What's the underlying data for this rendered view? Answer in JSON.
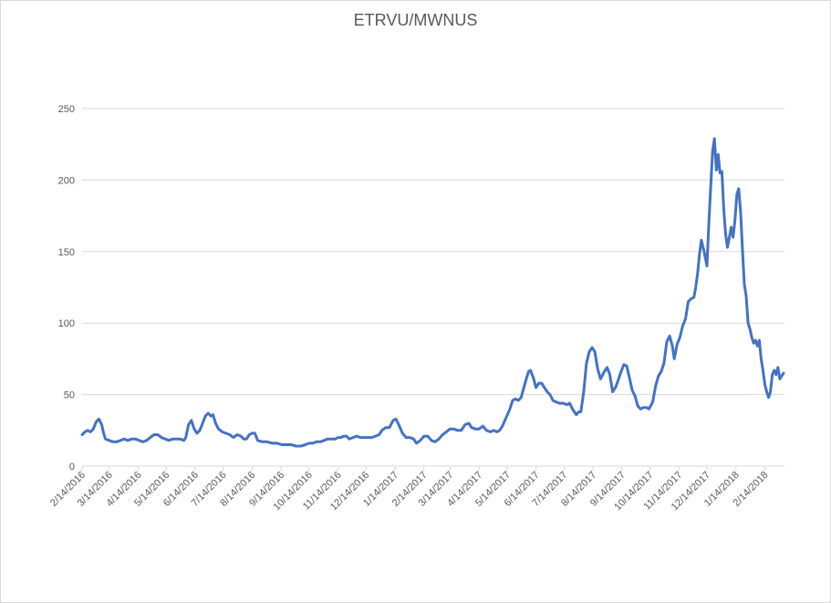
{
  "chart_data": {
    "type": "line",
    "title": "ETRVU/MWNUS",
    "xlabel": "",
    "ylabel": "",
    "ylim": [
      0,
      250
    ],
    "y_ticks": [
      0,
      50,
      100,
      150,
      200,
      250
    ],
    "x_range": [
      "2016-02-14",
      "2018-03-07"
    ],
    "x_tick_labels": [
      "2/14/2016",
      "3/14/2016",
      "4/14/2016",
      "5/14/2016",
      "6/14/2016",
      "7/14/2016",
      "8/14/2016",
      "9/14/2016",
      "10/14/2016",
      "11/14/2016",
      "12/14/2016",
      "1/14/2017",
      "2/14/2017",
      "3/14/2017",
      "4/14/2017",
      "5/14/2017",
      "6/14/2017",
      "7/14/2017",
      "8/14/2017",
      "9/14/2017",
      "10/14/2017",
      "11/14/2017",
      "12/14/2017",
      "1/14/2018",
      "2/14/2018"
    ],
    "grid": true,
    "legend": "none",
    "line_color": "#4472c4",
    "grid_color": "#d9d9d9",
    "series": [
      {
        "points": [
          [
            "2016-02-14",
            22
          ],
          [
            "2016-02-17",
            24
          ],
          [
            "2016-02-20",
            25
          ],
          [
            "2016-02-23",
            24
          ],
          [
            "2016-02-26",
            26
          ],
          [
            "2016-02-29",
            31
          ],
          [
            "2016-03-03",
            33
          ],
          [
            "2016-03-06",
            29
          ],
          [
            "2016-03-08",
            23
          ],
          [
            "2016-03-10",
            19
          ],
          [
            "2016-03-14",
            18
          ],
          [
            "2016-03-18",
            17
          ],
          [
            "2016-03-22",
            17
          ],
          [
            "2016-03-26",
            18
          ],
          [
            "2016-03-30",
            19
          ],
          [
            "2016-04-03",
            18
          ],
          [
            "2016-04-07",
            19
          ],
          [
            "2016-04-11",
            19
          ],
          [
            "2016-04-15",
            18
          ],
          [
            "2016-04-19",
            17
          ],
          [
            "2016-04-23",
            18
          ],
          [
            "2016-04-27",
            20
          ],
          [
            "2016-05-01",
            22
          ],
          [
            "2016-05-05",
            22
          ],
          [
            "2016-05-09",
            20
          ],
          [
            "2016-05-13",
            19
          ],
          [
            "2016-05-17",
            18
          ],
          [
            "2016-05-21",
            19
          ],
          [
            "2016-05-25",
            19
          ],
          [
            "2016-05-29",
            19
          ],
          [
            "2016-06-02",
            18
          ],
          [
            "2016-06-04",
            20
          ],
          [
            "2016-06-07",
            29
          ],
          [
            "2016-06-10",
            32
          ],
          [
            "2016-06-13",
            26
          ],
          [
            "2016-06-16",
            23
          ],
          [
            "2016-06-19",
            25
          ],
          [
            "2016-06-22",
            30
          ],
          [
            "2016-06-25",
            35
          ],
          [
            "2016-06-28",
            37
          ],
          [
            "2016-07-01",
            35
          ],
          [
            "2016-07-03",
            36
          ],
          [
            "2016-07-06",
            30
          ],
          [
            "2016-07-09",
            26
          ],
          [
            "2016-07-13",
            24
          ],
          [
            "2016-07-17",
            23
          ],
          [
            "2016-07-21",
            22
          ],
          [
            "2016-07-25",
            20
          ],
          [
            "2016-07-29",
            22
          ],
          [
            "2016-08-02",
            21
          ],
          [
            "2016-08-05",
            19
          ],
          [
            "2016-08-08",
            19
          ],
          [
            "2016-08-11",
            22
          ],
          [
            "2016-08-14",
            23
          ],
          [
            "2016-08-17",
            23
          ],
          [
            "2016-08-20",
            18
          ],
          [
            "2016-08-25",
            17
          ],
          [
            "2016-08-30",
            17
          ],
          [
            "2016-09-05",
            16
          ],
          [
            "2016-09-10",
            16
          ],
          [
            "2016-09-15",
            15
          ],
          [
            "2016-09-20",
            15
          ],
          [
            "2016-09-25",
            15
          ],
          [
            "2016-09-30",
            14
          ],
          [
            "2016-10-05",
            14
          ],
          [
            "2016-10-10",
            15
          ],
          [
            "2016-10-14",
            16
          ],
          [
            "2016-10-18",
            16
          ],
          [
            "2016-10-22",
            17
          ],
          [
            "2016-10-26",
            17
          ],
          [
            "2016-10-30",
            18
          ],
          [
            "2016-11-03",
            19
          ],
          [
            "2016-11-07",
            19
          ],
          [
            "2016-11-11",
            19
          ],
          [
            "2016-11-14",
            20
          ],
          [
            "2016-11-17",
            20
          ],
          [
            "2016-11-20",
            21
          ],
          [
            "2016-11-23",
            21
          ],
          [
            "2016-11-26",
            19
          ],
          [
            "2016-11-30",
            20
          ],
          [
            "2016-12-04",
            21
          ],
          [
            "2016-12-08",
            20
          ],
          [
            "2016-12-12",
            20
          ],
          [
            "2016-12-16",
            20
          ],
          [
            "2016-12-20",
            20
          ],
          [
            "2016-12-24",
            21
          ],
          [
            "2016-12-28",
            22
          ],
          [
            "2016-12-31",
            25
          ],
          [
            "2017-01-04",
            27
          ],
          [
            "2017-01-08",
            27
          ],
          [
            "2017-01-12",
            32
          ],
          [
            "2017-01-15",
            33
          ],
          [
            "2017-01-18",
            29
          ],
          [
            "2017-01-22",
            23
          ],
          [
            "2017-01-26",
            20
          ],
          [
            "2017-01-30",
            20
          ],
          [
            "2017-02-03",
            19
          ],
          [
            "2017-02-06",
            16
          ],
          [
            "2017-02-10",
            18
          ],
          [
            "2017-02-14",
            21
          ],
          [
            "2017-02-18",
            21
          ],
          [
            "2017-02-22",
            18
          ],
          [
            "2017-02-26",
            17
          ],
          [
            "2017-03-02",
            19
          ],
          [
            "2017-03-06",
            22
          ],
          [
            "2017-03-10",
            24
          ],
          [
            "2017-03-14",
            26
          ],
          [
            "2017-03-18",
            26
          ],
          [
            "2017-03-22",
            25
          ],
          [
            "2017-03-26",
            25
          ],
          [
            "2017-03-30",
            29
          ],
          [
            "2017-04-03",
            30
          ],
          [
            "2017-04-06",
            27
          ],
          [
            "2017-04-10",
            26
          ],
          [
            "2017-04-14",
            26
          ],
          [
            "2017-04-18",
            28
          ],
          [
            "2017-04-22",
            25
          ],
          [
            "2017-04-26",
            24
          ],
          [
            "2017-04-30",
            25
          ],
          [
            "2017-05-03",
            24
          ],
          [
            "2017-05-06",
            25
          ],
          [
            "2017-05-09",
            28
          ],
          [
            "2017-05-13",
            34
          ],
          [
            "2017-05-17",
            40
          ],
          [
            "2017-05-20",
            46
          ],
          [
            "2017-05-23",
            47
          ],
          [
            "2017-05-26",
            46
          ],
          [
            "2017-05-29",
            48
          ],
          [
            "2017-06-01",
            55
          ],
          [
            "2017-06-04",
            62
          ],
          [
            "2017-06-06",
            66
          ],
          [
            "2017-06-08",
            67
          ],
          [
            "2017-06-11",
            62
          ],
          [
            "2017-06-14",
            55
          ],
          [
            "2017-06-17",
            58
          ],
          [
            "2017-06-20",
            58
          ],
          [
            "2017-06-23",
            55
          ],
          [
            "2017-06-26",
            52
          ],
          [
            "2017-06-29",
            50
          ],
          [
            "2017-07-02",
            46
          ],
          [
            "2017-07-05",
            45
          ],
          [
            "2017-07-09",
            44
          ],
          [
            "2017-07-13",
            44
          ],
          [
            "2017-07-17",
            43
          ],
          [
            "2017-07-20",
            44
          ],
          [
            "2017-07-23",
            40
          ],
          [
            "2017-07-27",
            36
          ],
          [
            "2017-07-30",
            38
          ],
          [
            "2017-08-01",
            38
          ],
          [
            "2017-08-04",
            52
          ],
          [
            "2017-08-07",
            72
          ],
          [
            "2017-08-10",
            80
          ],
          [
            "2017-08-13",
            83
          ],
          [
            "2017-08-16",
            80
          ],
          [
            "2017-08-19",
            68
          ],
          [
            "2017-08-22",
            61
          ],
          [
            "2017-08-26",
            66
          ],
          [
            "2017-08-29",
            69
          ],
          [
            "2017-09-01",
            64
          ],
          [
            "2017-09-04",
            52
          ],
          [
            "2017-09-07",
            55
          ],
          [
            "2017-09-10",
            60
          ],
          [
            "2017-09-13",
            66
          ],
          [
            "2017-09-16",
            71
          ],
          [
            "2017-09-19",
            70
          ],
          [
            "2017-09-22",
            62
          ],
          [
            "2017-09-25",
            53
          ],
          [
            "2017-09-28",
            49
          ],
          [
            "2017-10-01",
            42
          ],
          [
            "2017-10-04",
            40
          ],
          [
            "2017-10-07",
            41
          ],
          [
            "2017-10-10",
            41
          ],
          [
            "2017-10-13",
            40
          ],
          [
            "2017-10-17",
            45
          ],
          [
            "2017-10-20",
            56
          ],
          [
            "2017-10-23",
            63
          ],
          [
            "2017-10-26",
            66
          ],
          [
            "2017-10-29",
            72
          ],
          [
            "2017-11-01",
            87
          ],
          [
            "2017-11-04",
            91
          ],
          [
            "2017-11-07",
            84
          ],
          [
            "2017-11-09",
            75
          ],
          [
            "2017-11-12",
            85
          ],
          [
            "2017-11-15",
            90
          ],
          [
            "2017-11-18",
            98
          ],
          [
            "2017-11-21",
            103
          ],
          [
            "2017-11-24",
            115
          ],
          [
            "2017-11-27",
            117
          ],
          [
            "2017-11-30",
            118
          ],
          [
            "2017-12-02",
            125
          ],
          [
            "2017-12-04",
            135
          ],
          [
            "2017-12-06",
            148
          ],
          [
            "2017-12-08",
            158
          ],
          [
            "2017-12-11",
            150
          ],
          [
            "2017-12-14",
            140
          ],
          [
            "2017-12-16",
            170
          ],
          [
            "2017-12-18",
            195
          ],
          [
            "2017-12-20",
            220
          ],
          [
            "2017-12-22",
            229
          ],
          [
            "2017-12-24",
            207
          ],
          [
            "2017-12-26",
            218
          ],
          [
            "2017-12-28",
            205
          ],
          [
            "2017-12-30",
            206
          ],
          [
            "2018-01-01",
            180
          ],
          [
            "2018-01-03",
            162
          ],
          [
            "2018-01-05",
            153
          ],
          [
            "2018-01-07",
            160
          ],
          [
            "2018-01-09",
            167
          ],
          [
            "2018-01-11",
            160
          ],
          [
            "2018-01-13",
            172
          ],
          [
            "2018-01-15",
            190
          ],
          [
            "2018-01-17",
            194
          ],
          [
            "2018-01-19",
            178
          ],
          [
            "2018-01-21",
            152
          ],
          [
            "2018-01-23",
            127
          ],
          [
            "2018-01-25",
            119
          ],
          [
            "2018-01-27",
            100
          ],
          [
            "2018-01-29",
            96
          ],
          [
            "2018-01-31",
            90
          ],
          [
            "2018-02-02",
            86
          ],
          [
            "2018-02-04",
            88
          ],
          [
            "2018-02-06",
            84
          ],
          [
            "2018-02-08",
            88
          ],
          [
            "2018-02-10",
            75
          ],
          [
            "2018-02-12",
            67
          ],
          [
            "2018-02-14",
            57
          ],
          [
            "2018-02-16",
            52
          ],
          [
            "2018-02-18",
            48
          ],
          [
            "2018-02-20",
            52
          ],
          [
            "2018-02-22",
            64
          ],
          [
            "2018-02-24",
            67
          ],
          [
            "2018-02-26",
            64
          ],
          [
            "2018-02-28",
            69
          ],
          [
            "2018-03-02",
            61
          ],
          [
            "2018-03-04",
            63
          ],
          [
            "2018-03-06",
            65
          ]
        ]
      }
    ]
  }
}
